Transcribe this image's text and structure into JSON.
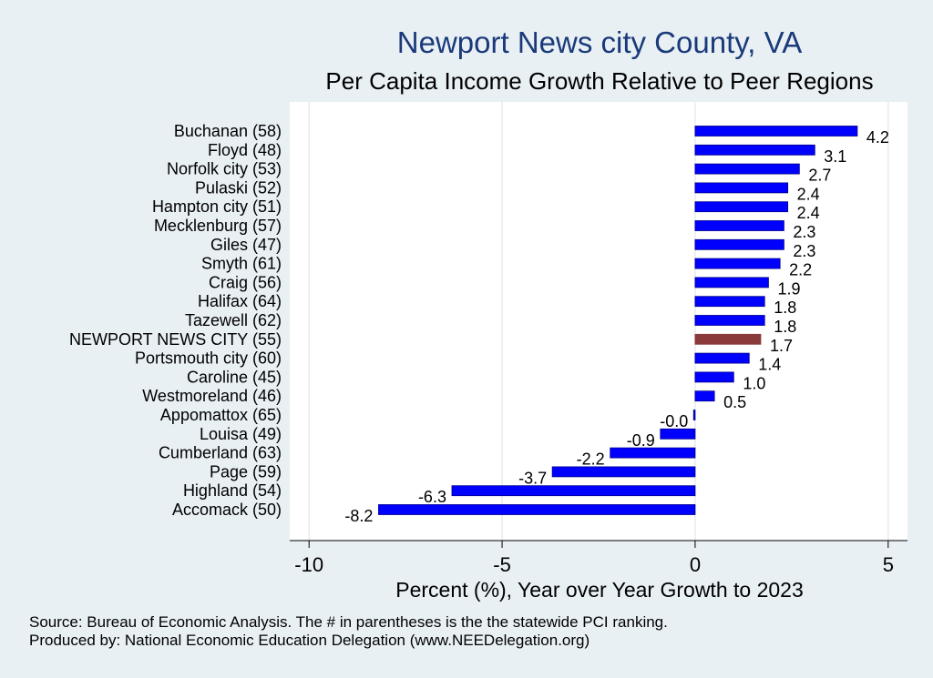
{
  "chart_data": {
    "type": "bar",
    "orientation": "horizontal",
    "title": "Newport News city County, VA",
    "subtitle": "Per Capita Income Growth Relative to Peer Regions",
    "xlabel": "Percent (%), Year over Year Growth to 2023",
    "xlim": [
      -10.5,
      5.5
    ],
    "xticks": [
      -10,
      -5,
      0,
      5
    ],
    "xtick_labels": [
      "-10",
      "-5",
      "0",
      "5"
    ],
    "grid": true,
    "categories": [
      "Buchanan (58)",
      "Floyd (48)",
      "Norfolk city (53)",
      "Pulaski (52)",
      "Hampton city (51)",
      "Mecklenburg (57)",
      "Giles (47)",
      "Smyth (61)",
      "Craig (56)",
      "Halifax (64)",
      "Tazewell (62)",
      "NEWPORT NEWS CITY (55)",
      "Portsmouth city (60)",
      "Caroline (45)",
      "Westmoreland (46)",
      "Appomattox (65)",
      "Louisa (49)",
      "Cumberland (63)",
      "Page (59)",
      "Highland (54)",
      "Accomack (50)"
    ],
    "values": [
      4.2,
      3.1,
      2.7,
      2.4,
      2.4,
      2.3,
      2.3,
      2.2,
      1.9,
      1.8,
      1.8,
      1.7,
      1.4,
      1.0,
      0.5,
      -0.04,
      -0.9,
      -2.2,
      -3.7,
      -6.3,
      -8.2
    ],
    "value_labels": [
      "4.2",
      "3.1",
      "2.7",
      "2.4",
      "2.4",
      "2.3",
      "2.3",
      "2.2",
      "1.9",
      "1.8",
      "1.8",
      "1.7",
      "1.4",
      "1.0",
      "0.5",
      "-0.0",
      "-0.9",
      "-2.2",
      "-3.7",
      "-6.3",
      "-8.2"
    ],
    "highlight_index": 11,
    "colors": {
      "bar": "#0000ff",
      "bar_edge": "#00008b",
      "highlight": "#8b3a3a",
      "background": "#e9f0f4",
      "plot_bg": "#ffffff",
      "title": "#1a3a7a",
      "grid": "#e6ecf0"
    }
  },
  "footnotes": {
    "source": "Source: Bureau of Economic Analysis. The # in parentheses is the the statewide PCI ranking.",
    "produced": "Produced by: National Economic Education Delegation (www.NEEDelegation.org)"
  }
}
